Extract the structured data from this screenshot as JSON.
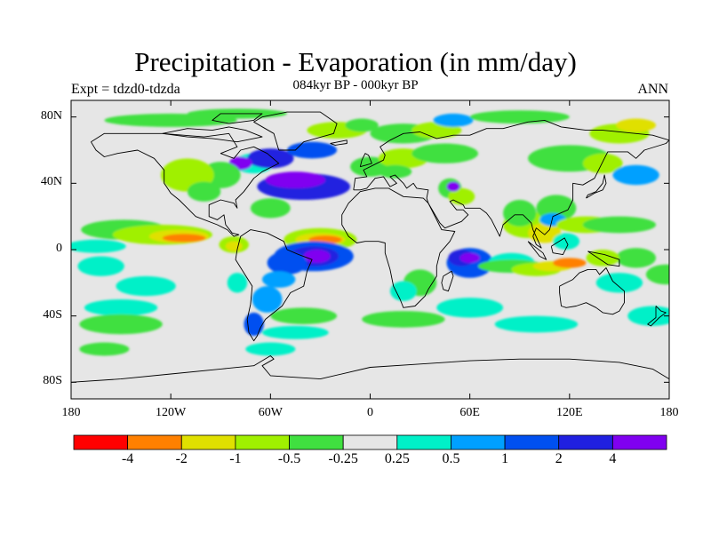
{
  "title": "Precipitation - Evaporation (in mm/day)",
  "subtitle": "084kyr BP - 000kyr BP",
  "experiment_label": "Expt = tdzd0-tdzda",
  "season_label": "ANN",
  "map": {
    "projection": "cylindrical equidistant",
    "lon_range": [
      -180,
      180
    ],
    "lat_range": [
      -90,
      90
    ],
    "lat_tick_labels": [
      "80N",
      "40N",
      "0",
      "40S",
      "80S"
    ],
    "lon_tick_labels": [
      "180",
      "120W",
      "60W",
      "0",
      "60E",
      "120E",
      "180"
    ],
    "background_color": "#e6e6e6",
    "coastline_color": "#000000"
  },
  "colorbar": {
    "colors": [
      "#ff0000",
      "#ff8000",
      "#e0e000",
      "#a0f000",
      "#40e040",
      "#e6e6e6",
      "#00f0c8",
      "#00a0ff",
      "#0050f0",
      "#2020e0",
      "#8000f0"
    ],
    "labels": [
      "-4",
      "-2",
      "-1",
      "-0.5",
      "-0.25",
      "0.25",
      "0.5",
      "1",
      "2",
      "4"
    ]
  }
}
